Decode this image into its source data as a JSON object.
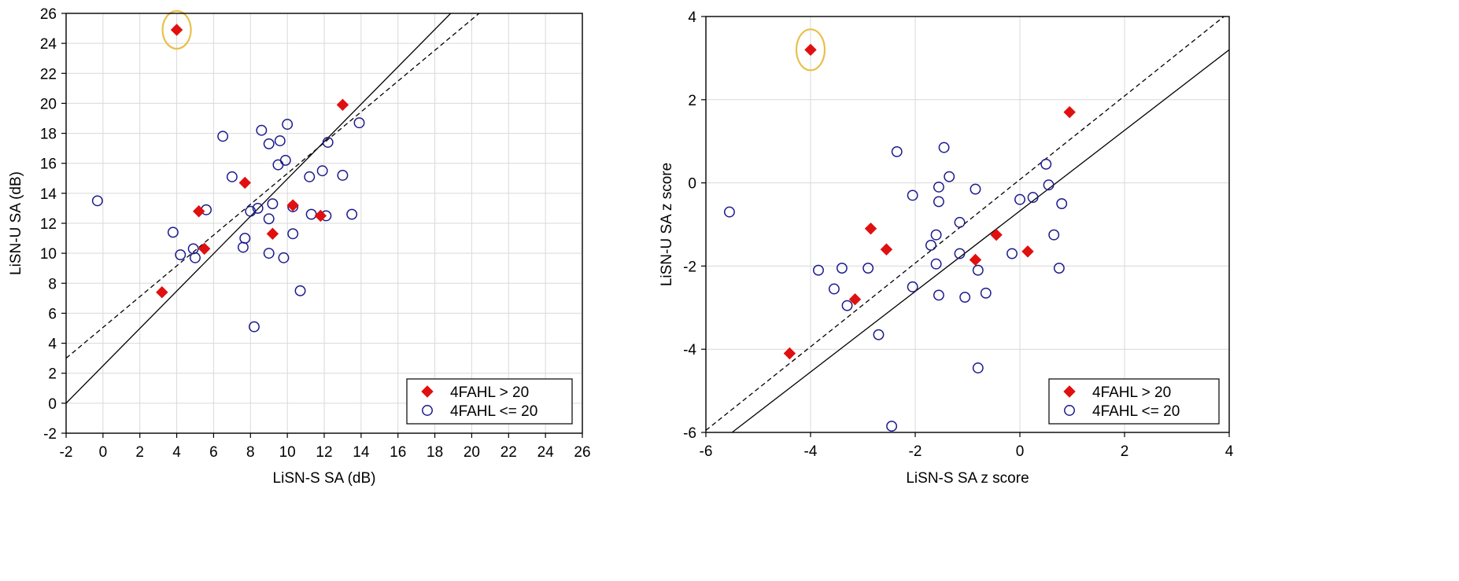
{
  "chart_data": [
    {
      "type": "scatter",
      "xlabel": "LiSN-S SA (dB)",
      "ylabel": "LiSN-U SA (dB)",
      "xlim": [
        -2,
        26
      ],
      "ylim": [
        -2,
        26
      ],
      "xticks": [
        "-2",
        "0",
        "2",
        "4",
        "6",
        "8",
        "10",
        "12",
        "14",
        "16",
        "18",
        "20",
        "22",
        "24",
        "26"
      ],
      "yticks": [
        "-2",
        "0",
        "2",
        "4",
        "6",
        "8",
        "10",
        "12",
        "14",
        "16",
        "18",
        "20",
        "22",
        "24",
        "26"
      ],
      "grid": true,
      "legend_position": "bottom-right",
      "lines": [
        {
          "style": "solid",
          "points": [
            [
              -2,
              0
            ],
            [
              18.86,
              26
            ]
          ]
        },
        {
          "style": "dashed",
          "points": [
            [
              -2,
              3
            ],
            [
              20.4,
              26
            ]
          ]
        }
      ],
      "highlight": {
        "x": 4.0,
        "y": 24.9,
        "color": "#e8c04a"
      },
      "series": [
        {
          "name": "4FAHL > 20",
          "marker": "diamond",
          "color": "#e01010",
          "points": [
            [
              4.0,
              24.9
            ],
            [
              13.0,
              19.9
            ],
            [
              7.7,
              14.7
            ],
            [
              5.2,
              12.8
            ],
            [
              5.5,
              10.3
            ],
            [
              3.2,
              7.4
            ],
            [
              9.2,
              11.3
            ],
            [
              10.3,
              13.2
            ],
            [
              11.8,
              12.5
            ]
          ]
        },
        {
          "name": "4FAHL <= 20",
          "marker": "circle",
          "color": "#1a1a8c",
          "points": [
            [
              -0.3,
              13.5
            ],
            [
              3.8,
              11.4
            ],
            [
              4.2,
              9.9
            ],
            [
              4.9,
              10.3
            ],
            [
              5.0,
              9.7
            ],
            [
              5.6,
              12.9
            ],
            [
              6.5,
              17.8
            ],
            [
              7.0,
              15.1
            ],
            [
              7.6,
              10.4
            ],
            [
              7.7,
              11.0
            ],
            [
              8.0,
              12.8
            ],
            [
              8.2,
              5.1
            ],
            [
              8.4,
              13.0
            ],
            [
              8.6,
              18.2
            ],
            [
              9.0,
              17.3
            ],
            [
              9.0,
              12.3
            ],
            [
              9.0,
              10.0
            ],
            [
              9.2,
              13.3
            ],
            [
              9.5,
              15.9
            ],
            [
              9.6,
              17.5
            ],
            [
              9.8,
              9.7
            ],
            [
              9.9,
              16.2
            ],
            [
              10.0,
              18.6
            ],
            [
              10.3,
              13.1
            ],
            [
              10.3,
              11.3
            ],
            [
              10.7,
              7.5
            ],
            [
              11.2,
              15.1
            ],
            [
              11.3,
              12.6
            ],
            [
              11.9,
              15.5
            ],
            [
              12.2,
              17.4
            ],
            [
              12.1,
              12.5
            ],
            [
              13.0,
              15.2
            ],
            [
              13.5,
              12.6
            ],
            [
              13.9,
              18.7
            ]
          ]
        }
      ]
    },
    {
      "type": "scatter",
      "xlabel": "LiSN-S SA z score",
      "ylabel": "LiSN-U SA z score",
      "xlim": [
        -6,
        4
      ],
      "ylim": [
        -6,
        4
      ],
      "xticks": [
        "-6",
        "-4",
        "-2",
        "0",
        "2",
        "4"
      ],
      "yticks": [
        "-6",
        "-4",
        "-2",
        "0",
        "2",
        "4"
      ],
      "grid": true,
      "legend_position": "bottom-right",
      "lines": [
        {
          "style": "solid",
          "points": [
            [
              -5.5,
              -6
            ],
            [
              4,
              3.2
            ]
          ]
        },
        {
          "style": "dashed",
          "points": [
            [
              -6,
              -5.95
            ],
            [
              3.9,
              4
            ]
          ]
        }
      ],
      "highlight": {
        "x": -4.0,
        "y": 3.2,
        "color": "#e8c04a"
      },
      "series": [
        {
          "name": "4FAHL > 20",
          "marker": "diamond",
          "color": "#e01010",
          "points": [
            [
              -4.0,
              3.2
            ],
            [
              0.95,
              1.7
            ],
            [
              -2.85,
              -1.1
            ],
            [
              -2.55,
              -1.6
            ],
            [
              -0.45,
              -1.25
            ],
            [
              -0.85,
              -1.85
            ],
            [
              0.15,
              -1.65
            ],
            [
              -3.15,
              -2.8
            ],
            [
              -4.4,
              -4.1
            ]
          ]
        },
        {
          "name": "4FAHL <= 20",
          "marker": "circle",
          "color": "#1a1a8c",
          "points": [
            [
              -5.55,
              -0.7
            ],
            [
              -2.35,
              0.75
            ],
            [
              -1.45,
              0.85
            ],
            [
              -2.05,
              -0.3
            ],
            [
              -1.55,
              -0.1
            ],
            [
              -1.35,
              0.15
            ],
            [
              -0.85,
              -0.15
            ],
            [
              0.5,
              0.45
            ],
            [
              0.55,
              -0.05
            ],
            [
              0.0,
              -0.4
            ],
            [
              0.25,
              -0.35
            ],
            [
              0.8,
              -0.5
            ],
            [
              -1.55,
              -0.45
            ],
            [
              -1.15,
              -0.95
            ],
            [
              -1.6,
              -1.25
            ],
            [
              -1.7,
              -1.5
            ],
            [
              -1.15,
              -1.7
            ],
            [
              -0.15,
              -1.7
            ],
            [
              0.65,
              -1.25
            ],
            [
              -3.85,
              -2.1
            ],
            [
              -3.4,
              -2.05
            ],
            [
              -2.9,
              -2.05
            ],
            [
              -3.55,
              -2.55
            ],
            [
              -3.3,
              -2.95
            ],
            [
              -2.05,
              -2.5
            ],
            [
              -1.6,
              -1.95
            ],
            [
              -1.55,
              -2.7
            ],
            [
              -1.05,
              -2.75
            ],
            [
              -0.8,
              -2.1
            ],
            [
              -0.65,
              -2.65
            ],
            [
              0.75,
              -2.05
            ],
            [
              -2.7,
              -3.65
            ],
            [
              -0.8,
              -4.45
            ],
            [
              -2.45,
              -5.85
            ]
          ]
        }
      ]
    }
  ]
}
